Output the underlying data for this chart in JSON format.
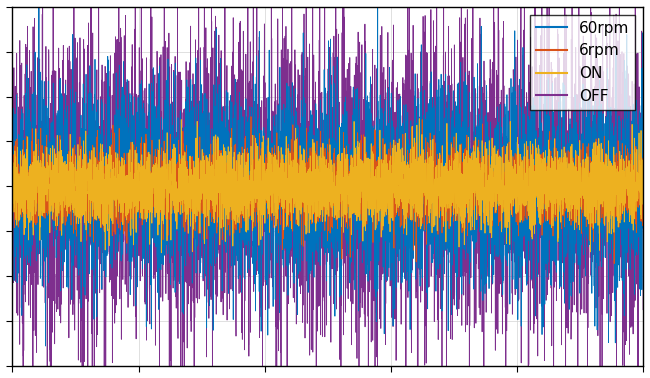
{
  "legend_labels": [
    "60rpm",
    "6rpm",
    "ON",
    "OFF"
  ],
  "colors": [
    "#0072BD",
    "#D95319",
    "#EDB120",
    "#7E2F8E"
  ],
  "n_points": 5000,
  "noise_scales": {
    "60rpm": 0.55,
    "6rpm": 0.22,
    "ON": 0.22,
    "OFF": 0.85
  },
  "offsets": {
    "60rpm": 0.0,
    "6rpm": 0.0,
    "ON": 0.0,
    "OFF": 0.0
  },
  "ylim": [
    -2.0,
    2.0
  ],
  "xlim": [
    0,
    1
  ],
  "grid": true,
  "linewidth": 0.6,
  "figsize": [
    6.5,
    3.78
  ],
  "dpi": 100,
  "legend_fontsize": 11,
  "legend_loc": "upper right"
}
